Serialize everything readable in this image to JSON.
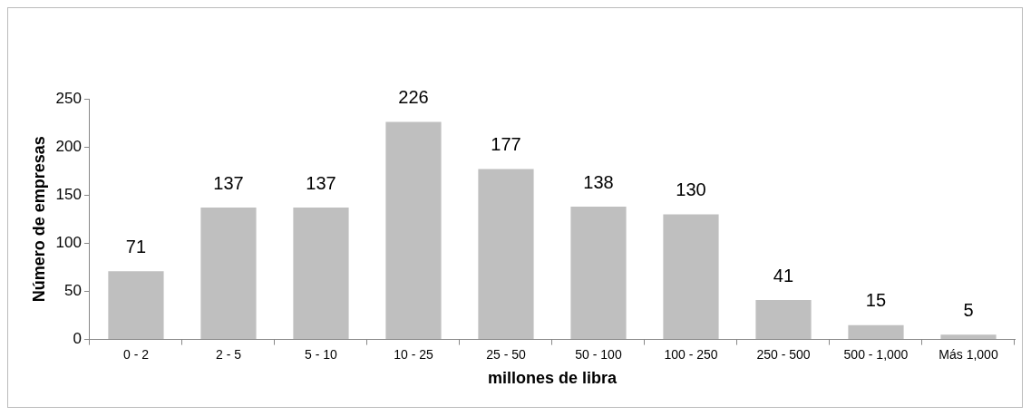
{
  "chart_data": {
    "type": "bar",
    "xlabel": "millones de libra",
    "ylabel": "Número de empresas",
    "categories": [
      "0 - 2",
      "2 - 5",
      "5 - 10",
      "10 - 25",
      "25 - 50",
      "50 - 100",
      "100 - 250",
      "250 - 500",
      "500 - 1,000",
      "Más 1,000"
    ],
    "values": [
      71,
      137,
      137,
      226,
      177,
      138,
      130,
      41,
      15,
      5
    ],
    "color": "#bfbfbf",
    "ylim": [
      0,
      250
    ],
    "yticks": [
      0,
      50,
      100,
      150,
      200,
      250
    ],
    "grid": false,
    "legend": false,
    "data_labels": true
  }
}
